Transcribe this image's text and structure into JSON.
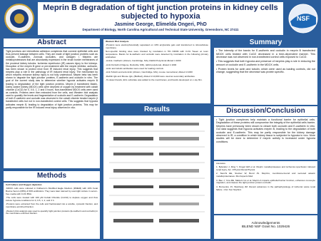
{
  "header": {
    "title": "Meprin B degradation of tight junction proteins in kidney cells subjected to hypoxia",
    "authors": "Jasmine George,  Elimelda Ongeri, PhD",
    "department": "Department of Biology, North Carolina Agricultural and Technical State University, Greensboro, NC 27411"
  },
  "abstract": {
    "heading": "Abstract",
    "text": "Tight junctions are intercellular adhesion complexes that connect epithelial cells and thus prevent leakage between cells. They are made of tight junction proteins such as occludin, E-cadherin, Zonnula occludins, and collagen I. Meprins are metalloproteinases that are abundantly expressed in the brush border membranes of the proximal kidney tubules. Ischemia reperfusion (IR) causes injury to the kidneys. Disruption of the meprin B gene or pre-treatment with the meprin inhibitor, actinonin, has been shown to protect mice from IR induced renal injury. This suggests that meprins play a role in the pathology of IR induced renal injury. The mechanism by which meprins enhance kidney injury is not fully understood. Meprin beta has been shown to degrade the tight junction proteins, E-cadherin and occludin in vitro. The goal of the current study was to determine whether hypoxia activates meprin B leading to degradation of the tight junction proteins. Meprin β transfected Madin-Darby canine kidney (MDCK) cells were deprived of oxygen by treatment with cobalt chloride (CoCl2) for 0, 0.5, 1, 2 and 3 hours. Non-transfected MDCK cells were used as controls. Proteins were then extracted from the cells, and Western blot analysis used to quantify the levels and fragmentation of occludin and E-cadherin. Degradation of both E-cadherin and occludin was observed in the cobalt chloride treated meprin β transfected cells but not in non-transfected control cells. This suggests that hypoxia activates meprin B, leading to degradation of tight junction proteins. This may be partly responsible for the IR induced renal injury observed in vivo."
  },
  "methods": {
    "heading": "Methods",
    "subheading": "Cell Culture and Oxygen depletion",
    "items": [
      "-MDCK cells were cultured in Dulbecco's Modified Eagle Medium (DMEM) with 10% Fetal Bovine Serum (FBS) & 50% antibiotics. They were later starved by overnight culture in serum-free media with 0.1% BSA.",
      "-The cells were treated with 100 μM Cobalt Chloride (CoCl2) to deplete oxygen and thus induce hypoxia conditions for 0, 0.5, 1, 2, and 3 h.",
      "-Proteins were extracted from the cells and fractionated into a soluble, cytosolic fraction, and membrane-enriched fraction.",
      "-Western blot analysis was used to quantify tight junction proteins (E-cadherin and occludin) in the membrane-enriched fraction."
    ]
  },
  "western_blot": {
    "heading": "Western Blot Analysis",
    "items": [
      "-Proteins were electrophoretically separated on 10% acrylamide gels and transferred to nitrocellulose membrane.",
      "Non-specific binding sites were blocked by incubation in 5% NFDM with 0.1% Tween at room temperature. Bands for E-cadherin and occludin were detected by incubation in the following primary antibodies:",
      "-Anti-E- Cadherin (Abcam, Cambridge, MA), Rabbit Polyclonal diluted 1:1000",
      "-Anti-Occludin (Origene, Rockville, MD), rabbit polyclonal, diluted 1:1000",
      "-Actin and tubulin antibodies were used for loading controls",
      "-Anti-Tubulin and anti-Actin (Abcam, Cambridge, MA), mouse monoclonal, diluted 1:1000",
      "-Rabbit IgG and Mouse IgG, (BioRad), diluted 1:10,000 were used as secondary antibodies.",
      "-To detect bands, ECL substrate was added to the membranes, and bands developed on x-ray film."
    ]
  },
  "results": {
    "heading": "Results"
  },
  "summary": {
    "heading": "Summary",
    "items": [
      "• The intensity of the bands for E-cadherin and occludin in meprin B transfected MDCK cells treated with CoCl2 decreased in a time-dependent manner. This decrease was not observed in non-transfected control cells exposed to CoCl2.",
      "• This suggests that both hypoxia and presence of meprins play a role in reducing the amount of occludin and E-cadherin in the MDCK cells.",
      "• Protein levels for actin and tubulin, which were used as loading controls, did not change, suggesting that the decrease was protein specific."
    ]
  },
  "discussion": {
    "heading": "Discussion/Conclusion",
    "items": [
      "• Tight junction complexes help maintain a functional barrier for epithelial cells. Degradation of these proteins will compromise the integrity of the epithelial cells barrier. Meprins have previously been shown to cleave both occludin and E-cadherin in vitro. Our data suggests that hypoxia activates meprin B, leading to the degradation of both occludin and E-cadherin. This may be partly responsible for the kidney damage observed in IR, a condition in which kidney tissue is subjected to hypoxia in vivo. More studies will be done to determine if meprin activity is increased under hypoxia conditions."
    ]
  },
  "literature": {
    "heading": "Literature",
    "items": [
      "1. Bylander J, Ding Y, Ongeri EM et al. Meprin metalloproteases and ischemia reperfusion induced renal injury. Am J Physiol Renal Physiol.",
      "2. Sterchi EE, Stocker W, Bond JS. Meprins, membrane-bound and secreted astacin metalloproteinases. Mol Aspects Med.",
      "3. Bao J, Yura RE, Matters GL et al. Meprin A impairs epithelial barrier function, enhances monocyte migration, and cleaves the tight junction protein occludin.",
      "4. Bonventre JV, Weinberg JM. Recent advances in the pathophysiology of ischemic acute renal failure. J Am Soc Nephrol."
    ]
  },
  "acknowledgements": {
    "heading": "Acknowledgements",
    "grant": "IBLEND NSF Grant No. 1029426"
  }
}
